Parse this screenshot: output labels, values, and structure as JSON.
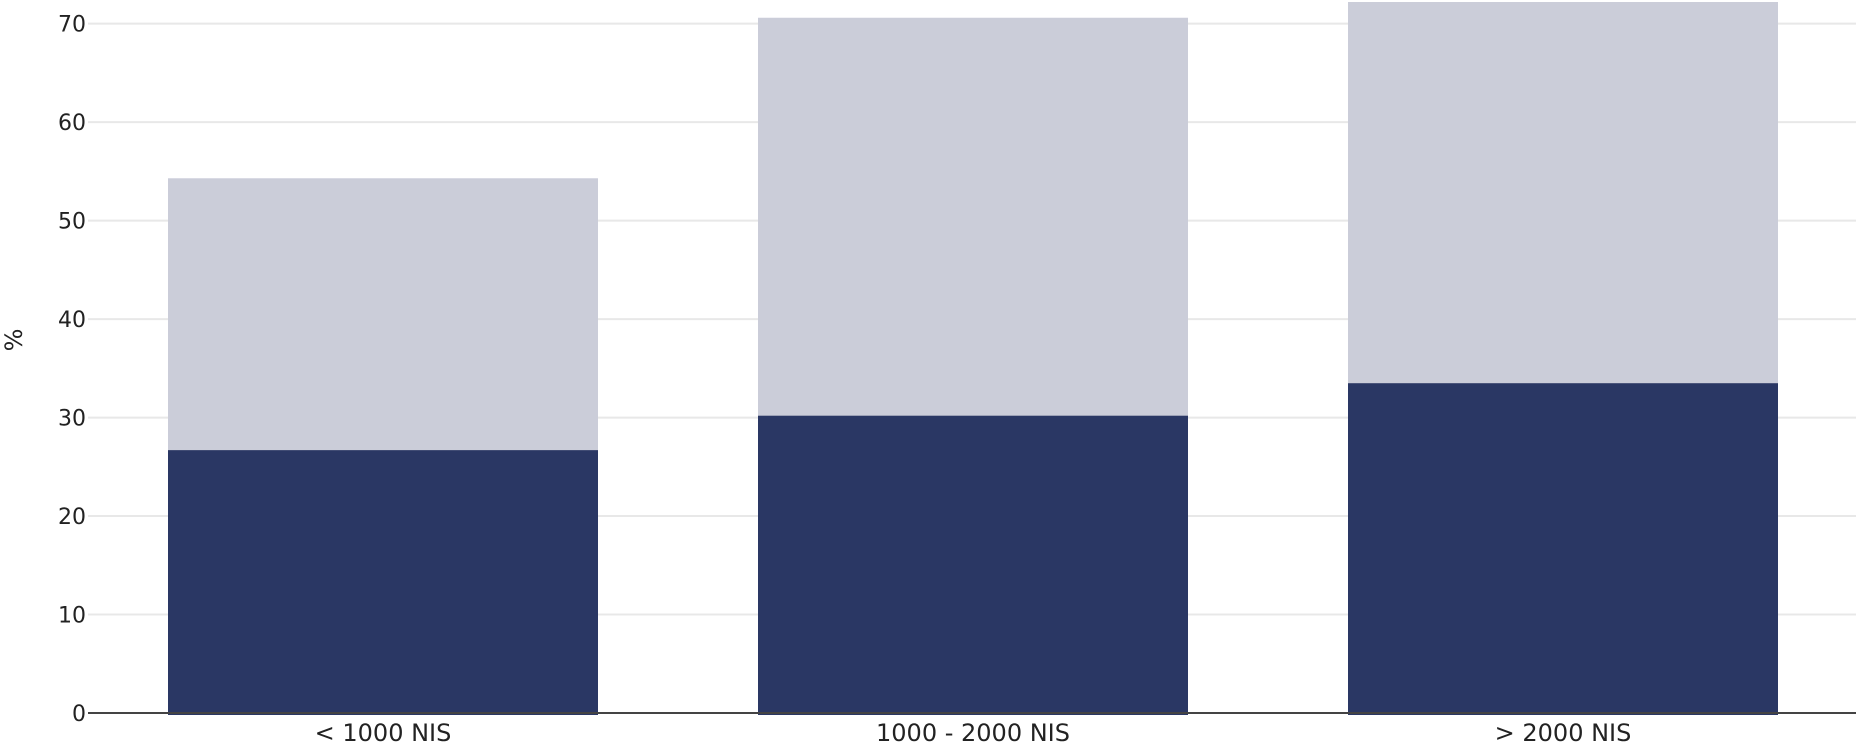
{
  "chart_data": {
    "type": "bar",
    "stacked": true,
    "categories": [
      "< 1000 NIS",
      "1000 - 2000 NIS",
      "> 2000 NIS"
    ],
    "series": [
      {
        "values": [
          26.7,
          30.2,
          33.5
        ],
        "color": "#2a3764"
      },
      {
        "values": [
          27.6,
          40.4,
          38.7
        ],
        "color": "#cbcdd9"
      }
    ],
    "totals": [
      54.3,
      70.6,
      72.2
    ],
    "ylabel": "%",
    "ylim": [
      0,
      72.2
    ],
    "yticks": [
      0,
      10,
      20,
      30,
      40,
      50,
      60,
      70
    ],
    "grid": true,
    "legend": "none"
  }
}
